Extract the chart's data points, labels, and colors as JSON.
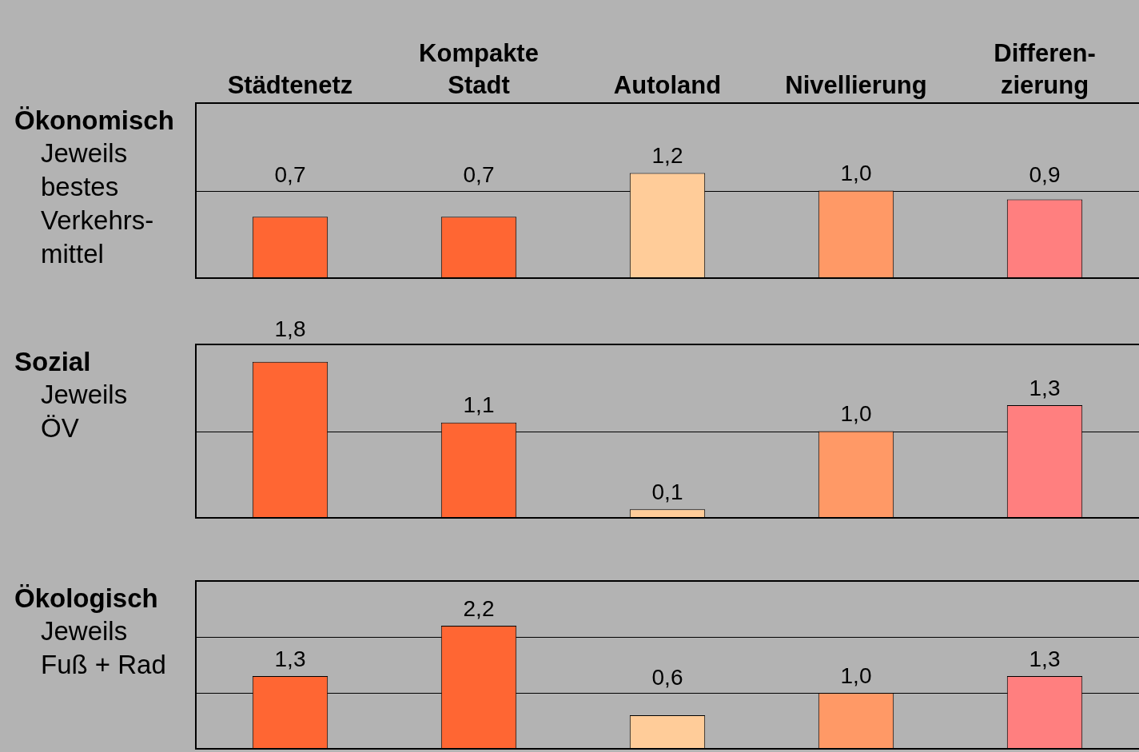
{
  "chart_data": [
    {
      "type": "bar",
      "title": "Ökonomisch",
      "subtitle": "Jeweils\nbestes\nVerkehrs-\nmittel",
      "categories": [
        "Städtenetz",
        "Kompakte\nStadt",
        "Autoland",
        "Nivellierung",
        "Differen-\nzierung"
      ],
      "values": [
        0.7,
        0.7,
        1.2,
        1.0,
        0.9
      ],
      "colors": [
        "#ff6633",
        "#ff6633",
        "#ffcc99",
        "#ff9966",
        "#ff7f7f"
      ],
      "value_labels": [
        "0,7",
        "0,7",
        "1,2",
        "1,0",
        "0,9"
      ],
      "ylim": [
        0,
        2
      ],
      "ref_lines": [
        {
          "axis": "y",
          "value": 1
        }
      ],
      "tick_labels": "x",
      "grid": false,
      "legend": false
    },
    {
      "type": "bar",
      "title": "Sozial",
      "subtitle": "Jeweils\nÖV",
      "values": [
        1.8,
        1.1,
        0.1,
        1.0,
        1.3
      ],
      "colors": [
        "#ff6633",
        "#ff6633",
        "#ffcc99",
        "#ff9966",
        "#ff7f7f"
      ],
      "value_labels": [
        "1,8",
        "1,1",
        "0,1",
        "1,0",
        "1,3"
      ],
      "ylim": [
        0,
        2
      ],
      "ref_lines": [
        {
          "axis": "y",
          "value": 1
        }
      ],
      "tick_labels": false,
      "grid": false,
      "legend": false
    },
    {
      "type": "bar",
      "title": "Ökologisch",
      "subtitle": "Jeweils\nFuß + Rad",
      "values": [
        1.3,
        2.2,
        0.6,
        1.0,
        1.3
      ],
      "colors": [
        "#ff6633",
        "#ff6633",
        "#ffcc99",
        "#ff9966",
        "#ff7f7f"
      ],
      "value_labels": [
        "1,3",
        "2,2",
        "0,6",
        "1,0",
        "1,3"
      ],
      "ylim": [
        0,
        3
      ],
      "ref_lines": [
        {
          "axis": "y",
          "value": 1
        },
        {
          "axis": "y",
          "value": 2
        }
      ],
      "tick_labels": false,
      "grid": false,
      "legend": false
    }
  ]
}
